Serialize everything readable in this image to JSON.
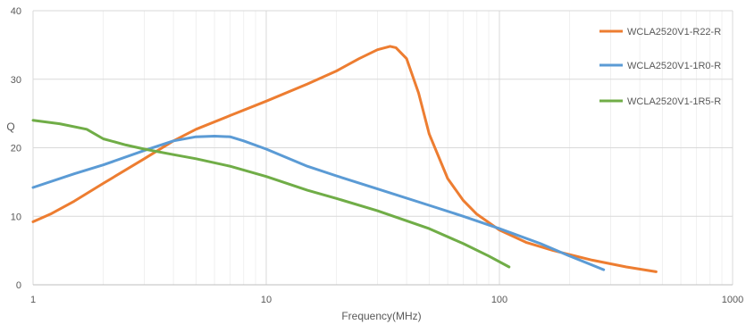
{
  "chart_data": {
    "type": "line",
    "title": "",
    "xlabel": "Frequency(MHz)",
    "ylabel": "Q",
    "x_scale": "log",
    "xlim": [
      1,
      1000
    ],
    "ylim": [
      0,
      40
    ],
    "x_ticks": [
      1,
      10,
      100,
      1000
    ],
    "x_tick_labels": [
      "1",
      "10",
      "100",
      "1000"
    ],
    "y_ticks": [
      0,
      10,
      20,
      30,
      40
    ],
    "y_tick_labels": [
      "0",
      "10",
      "20",
      "30",
      "40"
    ],
    "grid": true,
    "legend_position": "right",
    "series": [
      {
        "name": "WCLA2520V1-R22-R",
        "color": "#ed7d31",
        "x": [
          1,
          1.2,
          1.5,
          2,
          3,
          4,
          5,
          7,
          10,
          15,
          20,
          25,
          30,
          34,
          36,
          40,
          45,
          50,
          60,
          70,
          80,
          100,
          130,
          170,
          250,
          350,
          470
        ],
        "y": [
          9.2,
          10.4,
          12.2,
          14.8,
          18.4,
          21.0,
          22.7,
          24.7,
          26.8,
          29.3,
          31.2,
          33.0,
          34.3,
          34.8,
          34.6,
          33.0,
          28.0,
          22.0,
          15.5,
          12.3,
          10.3,
          8.0,
          6.2,
          5.0,
          3.6,
          2.6,
          1.9
        ]
      },
      {
        "name": "WCLA2520V1-1R0-R",
        "color": "#5b9bd5",
        "x": [
          1,
          1.5,
          2,
          3,
          4,
          5,
          6,
          7,
          8,
          10,
          15,
          20,
          30,
          50,
          70,
          100,
          150,
          200,
          280
        ],
        "y": [
          14.2,
          16.2,
          17.5,
          19.6,
          21.0,
          21.6,
          21.7,
          21.6,
          21.0,
          19.8,
          17.3,
          15.9,
          14.0,
          11.6,
          10.0,
          8.2,
          6.0,
          4.2,
          2.2
        ]
      },
      {
        "name": "WCLA2520V1-1R5-R",
        "color": "#70ad47",
        "x": [
          1,
          1.3,
          1.7,
          2,
          2.5,
          3,
          4,
          5,
          7,
          10,
          15,
          20,
          30,
          50,
          70,
          90,
          110
        ],
        "y": [
          24.0,
          23.5,
          22.7,
          21.3,
          20.4,
          19.8,
          19.0,
          18.4,
          17.3,
          15.8,
          13.8,
          12.6,
          10.8,
          8.2,
          6.0,
          4.2,
          2.6
        ]
      }
    ]
  }
}
